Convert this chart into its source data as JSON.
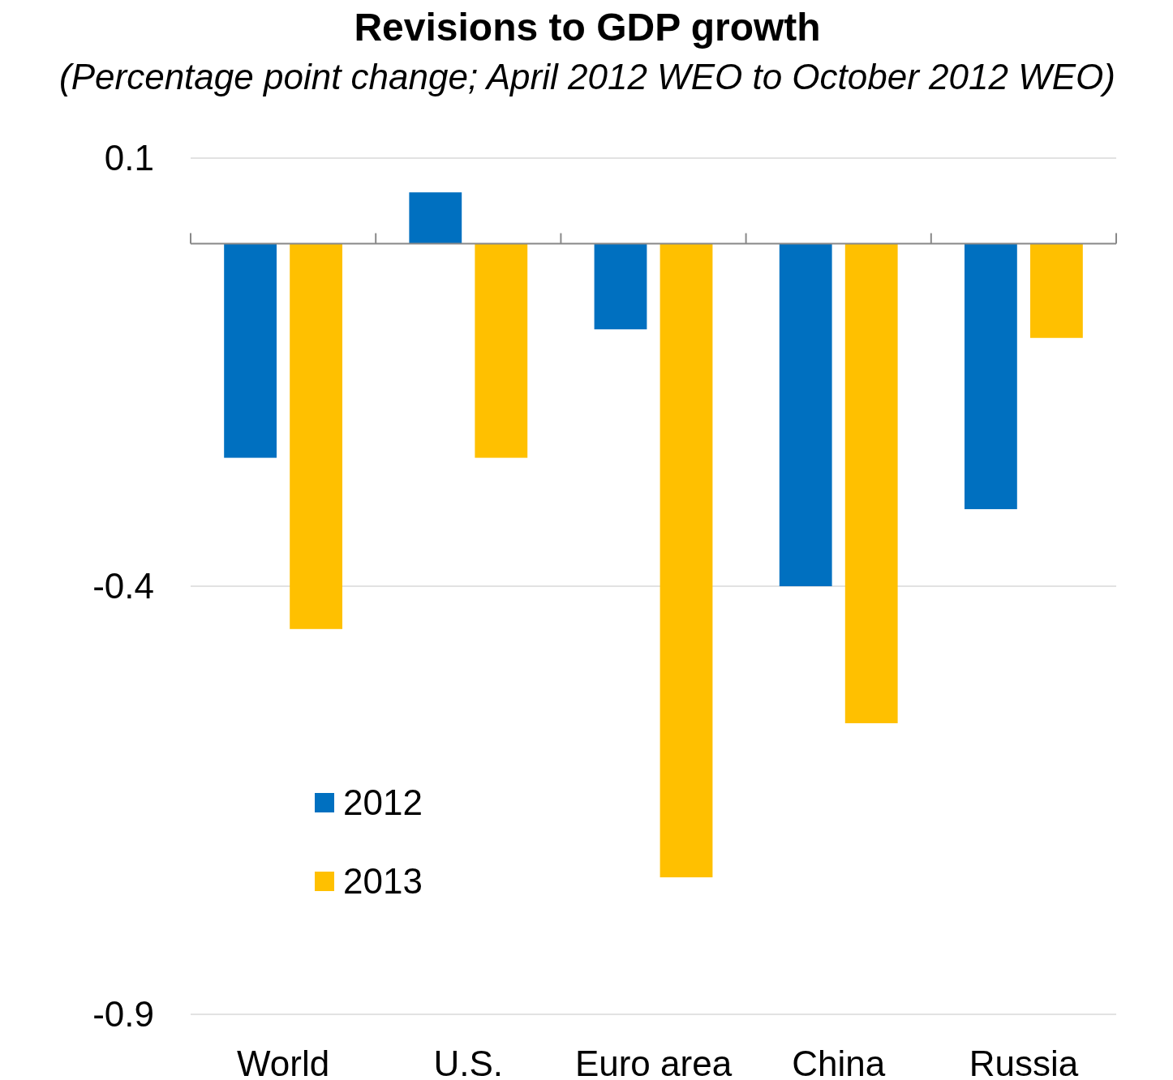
{
  "chart_data": {
    "type": "bar",
    "title": "Revisions to GDP growth",
    "subtitle": "(Percentage point change; April 2012 WEO to October 2012 WEO)",
    "categories": [
      "World",
      "U.S.",
      "Euro area",
      "China",
      "Russia"
    ],
    "series": [
      {
        "name": "2012",
        "color": "#0070c0",
        "values": [
          -0.25,
          0.06,
          -0.1,
          -0.4,
          -0.31
        ]
      },
      {
        "name": "2013",
        "color": "#ffc000",
        "values": [
          -0.45,
          -0.25,
          -0.74,
          -0.56,
          -0.11
        ]
      }
    ],
    "ylim": [
      -0.9,
      0.1
    ],
    "yticks": [
      0.1,
      -0.4,
      -0.9
    ],
    "grid": "y",
    "legend": "bottom left"
  }
}
